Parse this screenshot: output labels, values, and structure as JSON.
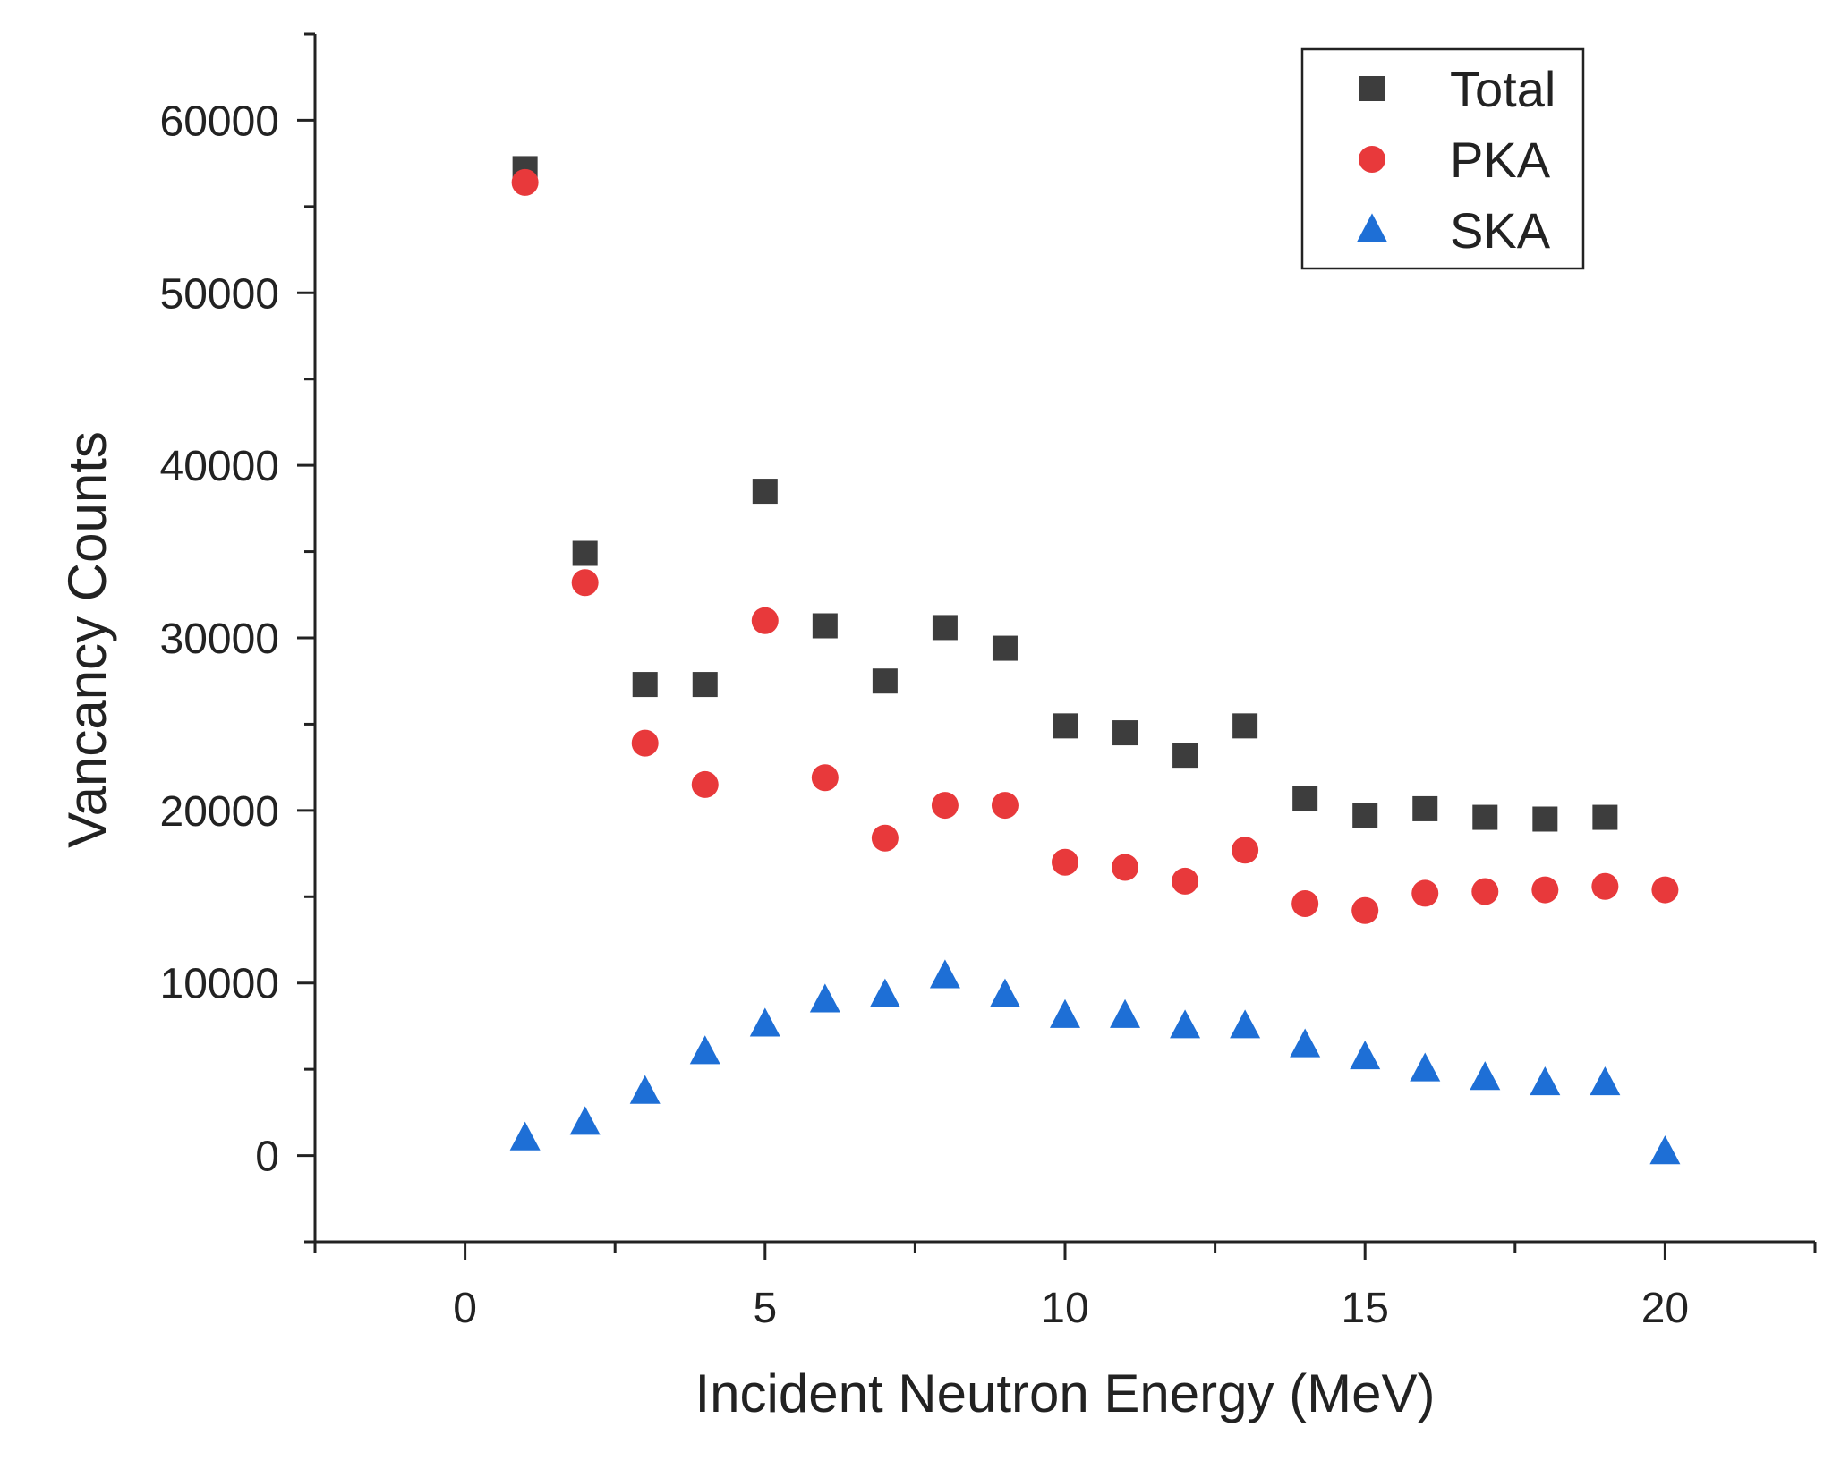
{
  "chart_data": {
    "type": "scatter",
    "title": "",
    "xlabel": "Incident Neutron Energy (MeV)",
    "ylabel": "Vancancy Counts",
    "xlim": [
      -2.5,
      22.5
    ],
    "ylim": [
      -5000,
      65000
    ],
    "xticks": [
      0,
      5,
      10,
      15,
      20
    ],
    "yticks": [
      0,
      10000,
      20000,
      30000,
      40000,
      50000,
      60000
    ],
    "xtick_labels": [
      "0",
      "5",
      "10",
      "15",
      "20"
    ],
    "ytick_labels": [
      "0",
      "10000",
      "20000",
      "30000",
      "40000",
      "50000",
      "60000"
    ],
    "grid": false,
    "legend_position": "top-right",
    "x": [
      1,
      2,
      3,
      4,
      5,
      6,
      7,
      8,
      9,
      10,
      11,
      12,
      13,
      14,
      15,
      16,
      17,
      18,
      19,
      20
    ],
    "series": [
      {
        "name": "Total",
        "marker": "square",
        "color": "#3d3d3d",
        "values": [
          57200,
          34900,
          27300,
          27300,
          38500,
          30700,
          27500,
          30600,
          29400,
          24900,
          24500,
          23200,
          24900,
          20700,
          19700,
          20100,
          19600,
          19500,
          19600,
          null
        ]
      },
      {
        "name": "PKA",
        "marker": "circle",
        "color": "#e8393b",
        "values": [
          56400,
          33200,
          23900,
          21500,
          31000,
          21900,
          18400,
          20300,
          20300,
          17000,
          16700,
          15900,
          17700,
          14600,
          14200,
          15200,
          15300,
          15400,
          15600,
          15400
        ]
      },
      {
        "name": "SKA",
        "marker": "triangle",
        "color": "#1e6fd6",
        "values": [
          1000,
          1900,
          3700,
          6000,
          7600,
          9000,
          9300,
          10400,
          9300,
          8100,
          8100,
          7500,
          7500,
          6400,
          5700,
          5000,
          4500,
          4200,
          4200,
          200
        ]
      }
    ]
  }
}
